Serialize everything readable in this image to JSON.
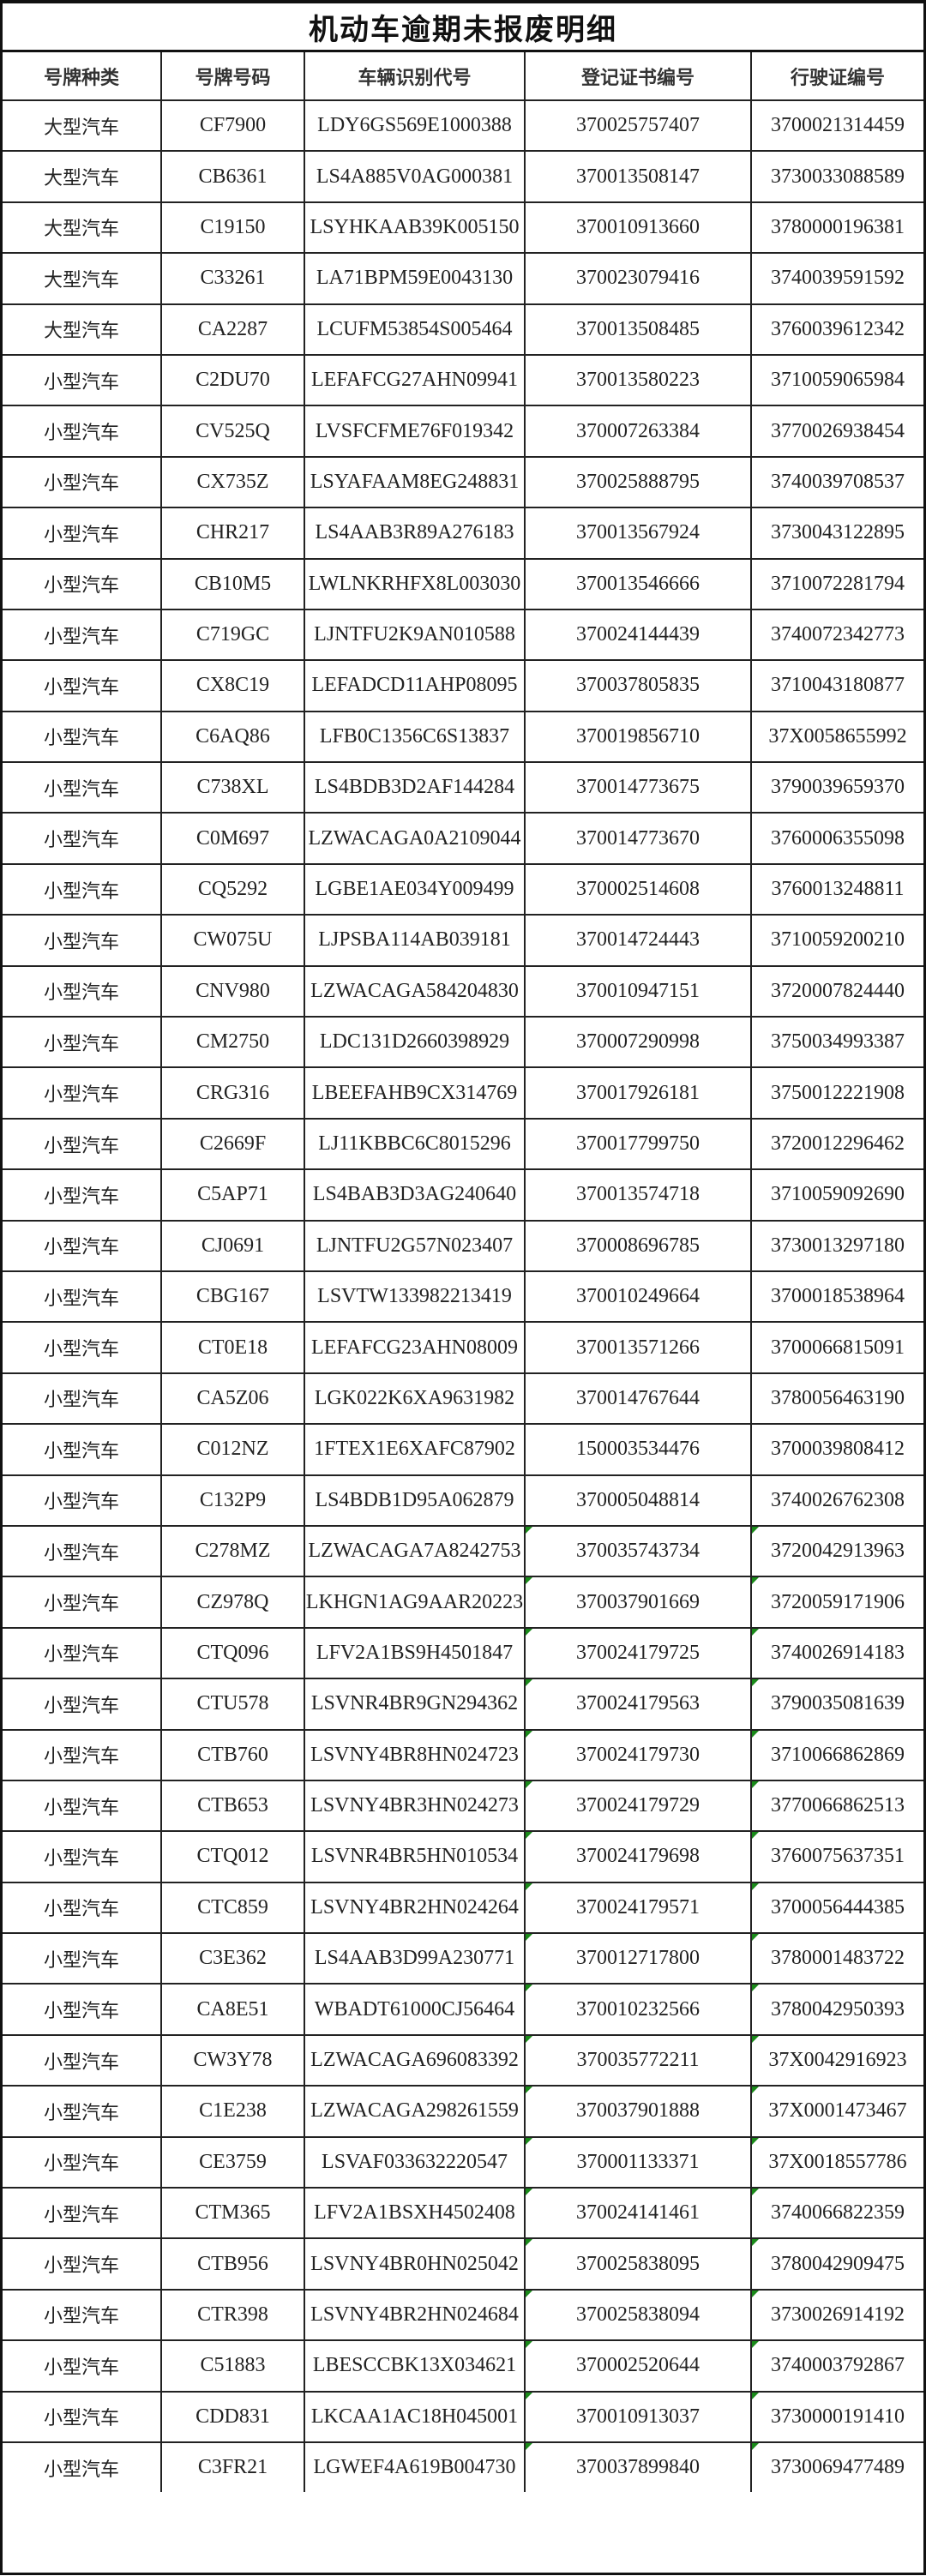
{
  "title": "机动车逾期未报废明细",
  "columns": [
    "号牌种类",
    "号牌号码",
    "车辆识别代号",
    "登记证书编号",
    "行驶证编号"
  ],
  "colors": {
    "border": "#222222",
    "error_indicator": "#1a8a1a"
  },
  "rows": [
    {
      "type": "大型汽车",
      "plate": "CF7900",
      "vin": "LDY6GS569E1000388",
      "reg": "370025757407",
      "lic": "3700021314459",
      "flag": false
    },
    {
      "type": "大型汽车",
      "plate": "CB6361",
      "vin": "LS4A885V0AG000381",
      "reg": "370013508147",
      "lic": "3730033088589",
      "flag": false
    },
    {
      "type": "大型汽车",
      "plate": "C19150",
      "vin": "LSYHKAAB39K005150",
      "reg": "370010913660",
      "lic": "3780000196381",
      "flag": false
    },
    {
      "type": "大型汽车",
      "plate": "C33261",
      "vin": "LA71BPM59E0043130",
      "reg": "370023079416",
      "lic": "3740039591592",
      "flag": false
    },
    {
      "type": "大型汽车",
      "plate": "CA2287",
      "vin": "LCUFM53854S005464",
      "reg": "370013508485",
      "lic": "3760039612342",
      "flag": false
    },
    {
      "type": "小型汽车",
      "plate": "C2DU70",
      "vin": "LEFAFCG27AHN09941",
      "reg": "370013580223",
      "lic": "3710059065984",
      "flag": false
    },
    {
      "type": "小型汽车",
      "plate": "CV525Q",
      "vin": "LVSFCFME76F019342",
      "reg": "370007263384",
      "lic": "3770026938454",
      "flag": false
    },
    {
      "type": "小型汽车",
      "plate": "CX735Z",
      "vin": "LSYAFAAM8EG248831",
      "reg": "370025888795",
      "lic": "3740039708537",
      "flag": false
    },
    {
      "type": "小型汽车",
      "plate": "CHR217",
      "vin": "LS4AAB3R89A276183",
      "reg": "370013567924",
      "lic": "3730043122895",
      "flag": false
    },
    {
      "type": "小型汽车",
      "plate": "CB10M5",
      "vin": "LWLNKRHFX8L003030",
      "reg": "370013546666",
      "lic": "3710072281794",
      "flag": false
    },
    {
      "type": "小型汽车",
      "plate": "C719GC",
      "vin": "LJNTFU2K9AN010588",
      "reg": "370024144439",
      "lic": "3740072342773",
      "flag": false
    },
    {
      "type": "小型汽车",
      "plate": "CX8C19",
      "vin": "LEFADCD11AHP08095",
      "reg": "370037805835",
      "lic": "3710043180877",
      "flag": false
    },
    {
      "type": "小型汽车",
      "plate": "C6AQ86",
      "vin": "LFB0C1356C6S13837",
      "reg": "370019856710",
      "lic": "37X0058655992",
      "flag": false
    },
    {
      "type": "小型汽车",
      "plate": "C738XL",
      "vin": "LS4BDB3D2AF144284",
      "reg": "370014773675",
      "lic": "3790039659370",
      "flag": false
    },
    {
      "type": "小型汽车",
      "plate": "C0M697",
      "vin": "LZWACAGA0A2109044",
      "reg": "370014773670",
      "lic": "3760006355098",
      "flag": false
    },
    {
      "type": "小型汽车",
      "plate": "CQ5292",
      "vin": "LGBE1AE034Y009499",
      "reg": "370002514608",
      "lic": "3760013248811",
      "flag": false
    },
    {
      "type": "小型汽车",
      "plate": "CW075U",
      "vin": "LJPSBA114AB039181",
      "reg": "370014724443",
      "lic": "3710059200210",
      "flag": false
    },
    {
      "type": "小型汽车",
      "plate": "CNV980",
      "vin": "LZWACAGA584204830",
      "reg": "370010947151",
      "lic": "3720007824440",
      "flag": false
    },
    {
      "type": "小型汽车",
      "plate": "CM2750",
      "vin": "LDC131D2660398929",
      "reg": "370007290998",
      "lic": "3750034993387",
      "flag": false
    },
    {
      "type": "小型汽车",
      "plate": "CRG316",
      "vin": "LBEEFAHB9CX314769",
      "reg": "370017926181",
      "lic": "3750012221908",
      "flag": false
    },
    {
      "type": "小型汽车",
      "plate": "C2669F",
      "vin": "LJ11KBBC6C8015296",
      "reg": "370017799750",
      "lic": "3720012296462",
      "flag": false
    },
    {
      "type": "小型汽车",
      "plate": "C5AP71",
      "vin": "LS4BAB3D3AG240640",
      "reg": "370013574718",
      "lic": "3710059092690",
      "flag": false
    },
    {
      "type": "小型汽车",
      "plate": "CJ0691",
      "vin": "LJNTFU2G57N023407",
      "reg": "370008696785",
      "lic": "3730013297180",
      "flag": false
    },
    {
      "type": "小型汽车",
      "plate": "CBG167",
      "vin": "LSVTW133982213419",
      "reg": "370010249664",
      "lic": "3700018538964",
      "flag": false
    },
    {
      "type": "小型汽车",
      "plate": "CT0E18",
      "vin": "LEFAFCG23AHN08009",
      "reg": "370013571266",
      "lic": "3700066815091",
      "flag": false
    },
    {
      "type": "小型汽车",
      "plate": "CA5Z06",
      "vin": "LGK022K6XA9631982",
      "reg": "370014767644",
      "lic": "3780056463190",
      "flag": false
    },
    {
      "type": "小型汽车",
      "plate": "C012NZ",
      "vin": "1FTEX1E6XAFC87902",
      "reg": "150003534476",
      "lic": "3700039808412",
      "flag": false
    },
    {
      "type": "小型汽车",
      "plate": "C132P9",
      "vin": "LS4BDB1D95A062879",
      "reg": "370005048814",
      "lic": "3740026762308",
      "flag": false
    },
    {
      "type": "小型汽车",
      "plate": "C278MZ",
      "vin": "LZWACAGA7A8242753",
      "reg": "370035743734",
      "lic": "3720042913963",
      "flag": true
    },
    {
      "type": "小型汽车",
      "plate": "CZ978Q",
      "vin": "LKHGN1AG9AAR20223",
      "reg": "370037901669",
      "lic": "3720059171906",
      "flag": true
    },
    {
      "type": "小型汽车",
      "plate": "CTQ096",
      "vin": "LFV2A1BS9H4501847",
      "reg": "370024179725",
      "lic": "3740026914183",
      "flag": true
    },
    {
      "type": "小型汽车",
      "plate": "CTU578",
      "vin": "LSVNR4BR9GN294362",
      "reg": "370024179563",
      "lic": "3790035081639",
      "flag": true
    },
    {
      "type": "小型汽车",
      "plate": "CTB760",
      "vin": "LSVNY4BR8HN024723",
      "reg": "370024179730",
      "lic": "3710066862869",
      "flag": true
    },
    {
      "type": "小型汽车",
      "plate": "CTB653",
      "vin": "LSVNY4BR3HN024273",
      "reg": "370024179729",
      "lic": "3770066862513",
      "flag": true
    },
    {
      "type": "小型汽车",
      "plate": "CTQ012",
      "vin": "LSVNR4BR5HN010534",
      "reg": "370024179698",
      "lic": "3760075637351",
      "flag": true
    },
    {
      "type": "小型汽车",
      "plate": "CTC859",
      "vin": "LSVNY4BR2HN024264",
      "reg": "370024179571",
      "lic": "3700056444385",
      "flag": true
    },
    {
      "type": "小型汽车",
      "plate": "C3E362",
      "vin": "LS4AAB3D99A230771",
      "reg": "370012717800",
      "lic": "3780001483722",
      "flag": true
    },
    {
      "type": "小型汽车",
      "plate": "CA8E51",
      "vin": "WBADT61000CJ56464",
      "reg": "370010232566",
      "lic": "3780042950393",
      "flag": true
    },
    {
      "type": "小型汽车",
      "plate": "CW3Y78",
      "vin": "LZWACAGA696083392",
      "reg": "370035772211",
      "lic": "37X0042916923",
      "flag": true
    },
    {
      "type": "小型汽车",
      "plate": "C1E238",
      "vin": "LZWACAGA298261559",
      "reg": "370037901888",
      "lic": "37X0001473467",
      "flag": true
    },
    {
      "type": "小型汽车",
      "plate": "CE3759",
      "vin": "LSVAF033632220547",
      "reg": "370001133371",
      "lic": "37X0018557786",
      "flag": true
    },
    {
      "type": "小型汽车",
      "plate": "CTM365",
      "vin": "LFV2A1BSXH4502408",
      "reg": "370024141461",
      "lic": "3740066822359",
      "flag": true
    },
    {
      "type": "小型汽车",
      "plate": "CTB956",
      "vin": "LSVNY4BR0HN025042",
      "reg": "370025838095",
      "lic": "3780042909475",
      "flag": true
    },
    {
      "type": "小型汽车",
      "plate": "CTR398",
      "vin": "LSVNY4BR2HN024684",
      "reg": "370025838094",
      "lic": "3730026914192",
      "flag": true
    },
    {
      "type": "小型汽车",
      "plate": "C51883",
      "vin": "LBESCCBK13X034621",
      "reg": "370002520644",
      "lic": "3740003792867",
      "flag": true
    },
    {
      "type": "小型汽车",
      "plate": "CDD831",
      "vin": "LKCAA1AC18H045001",
      "reg": "370010913037",
      "lic": "3730000191410",
      "flag": true
    },
    {
      "type": "小型汽车",
      "plate": "C3FR21",
      "vin": "LGWEF4A619B004730",
      "reg": "370037899840",
      "lic": "3730069477489",
      "flag": true
    }
  ]
}
